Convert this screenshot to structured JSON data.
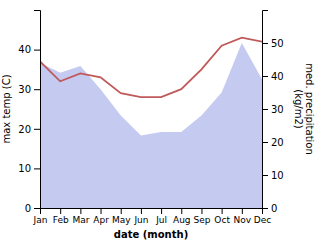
{
  "chart_data": {
    "type": "line",
    "xlabel": "date (month)",
    "ylabel": "max temp (C)",
    "y2label": "med. precipitation\n(kg/m2)",
    "categories": [
      "Jan",
      "Feb",
      "Mar",
      "Apr",
      "May",
      "Jun",
      "Jul",
      "Aug",
      "Sep",
      "Oct",
      "Nov",
      "Dec"
    ],
    "series": [
      {
        "type": "area",
        "axis": "y2",
        "color": "#c5caf0",
        "values": [
          44,
          41,
          43,
          36,
          28,
          22,
          23,
          23,
          28,
          35,
          50,
          39
        ]
      },
      {
        "type": "line",
        "color": "#c0595a",
        "values": [
          37,
          32,
          34,
          33,
          29,
          28,
          28,
          30,
          35,
          41,
          43,
          42
        ]
      }
    ],
    "ylim": [
      0,
      50
    ],
    "yticks": [
      0,
      10,
      20,
      30,
      40
    ],
    "y2lim": [
      0,
      60
    ],
    "y2ticks": [
      0,
      10,
      20,
      30,
      40,
      50
    ],
    "grid": false
  }
}
